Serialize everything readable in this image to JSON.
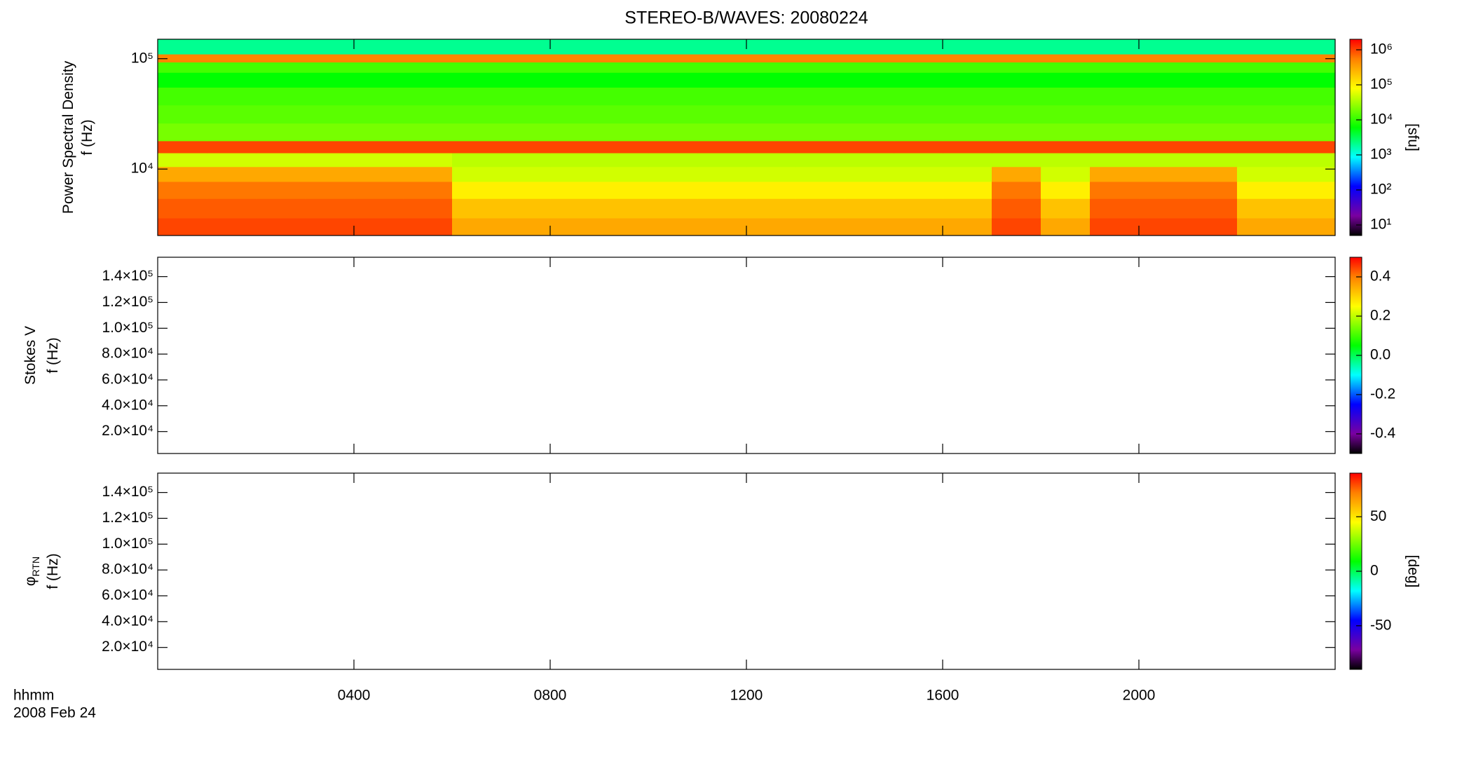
{
  "chart_data": [
    {
      "type": "heatmap",
      "title": "STEREO-B/WAVES: 20080224",
      "ylabel": [
        "Power Spectral Density",
        "f (Hz)"
      ],
      "xlim": [
        0,
        24
      ],
      "ylim": [
        2500,
        150000
      ],
      "yscale": "log",
      "yticks": [
        {
          "value": 10000,
          "label": "10⁴"
        },
        {
          "value": 100000,
          "label": "10⁵"
        }
      ],
      "xbins": [
        0,
        1,
        2,
        3,
        4,
        5,
        6,
        7,
        8,
        9,
        10,
        11,
        12,
        13,
        14,
        15,
        16,
        17,
        18,
        19,
        20,
        21,
        22,
        23,
        24
      ],
      "ybins": [
        2500,
        3600,
        5400,
        7700,
        10500,
        14000,
        18000,
        26000,
        38000,
        55000,
        75000,
        93000,
        110000,
        150000
      ],
      "z": [
        [
          1000000,
          1000000,
          1000000,
          1000000,
          1000000,
          1000000,
          300000,
          300000,
          300000,
          300000,
          300000,
          300000,
          300000,
          300000,
          300000,
          300000,
          300000,
          1000000,
          300000,
          1000000,
          1000000,
          1000000,
          300000,
          300000
        ],
        [
          800000,
          800000,
          800000,
          800000,
          800000,
          800000,
          200000,
          200000,
          200000,
          200000,
          200000,
          200000,
          200000,
          200000,
          200000,
          200000,
          200000,
          800000,
          200000,
          800000,
          800000,
          800000,
          200000,
          200000
        ],
        [
          600000,
          600000,
          600000,
          600000,
          600000,
          600000,
          100000,
          100000,
          100000,
          100000,
          100000,
          100000,
          100000,
          100000,
          100000,
          100000,
          100000,
          600000,
          100000,
          600000,
          600000,
          600000,
          100000,
          100000
        ],
        [
          300000,
          300000,
          300000,
          300000,
          300000,
          300000,
          50000,
          50000,
          50000,
          50000,
          50000,
          50000,
          50000,
          50000,
          50000,
          50000,
          50000,
          300000,
          50000,
          300000,
          300000,
          300000,
          50000,
          50000
        ],
        [
          50000,
          50000,
          50000,
          50000,
          50000,
          50000,
          40000,
          40000,
          40000,
          40000,
          40000,
          40000,
          40000,
          40000,
          40000,
          40000,
          40000,
          40000,
          40000,
          40000,
          40000,
          40000,
          40000,
          40000
        ],
        [
          1000000,
          1000000,
          1000000,
          1000000,
          1000000,
          1000000,
          1000000,
          1000000,
          1000000,
          1000000,
          1000000,
          1000000,
          1000000,
          1000000,
          1000000,
          1000000,
          1000000,
          1000000,
          1000000,
          1000000,
          1000000,
          1000000,
          1000000,
          1000000
        ],
        [
          20000,
          20000,
          20000,
          20000,
          20000,
          20000,
          20000,
          20000,
          20000,
          20000,
          20000,
          20000,
          20000,
          20000,
          20000,
          20000,
          20000,
          20000,
          20000,
          20000,
          20000,
          20000,
          20000,
          20000
        ],
        [
          15000,
          15000,
          15000,
          15000,
          15000,
          15000,
          15000,
          15000,
          15000,
          15000,
          15000,
          15000,
          15000,
          15000,
          15000,
          15000,
          15000,
          15000,
          15000,
          15000,
          15000,
          15000,
          15000,
          15000
        ],
        [
          12000,
          12000,
          12000,
          12000,
          12000,
          12000,
          12000,
          12000,
          12000,
          12000,
          12000,
          12000,
          12000,
          12000,
          12000,
          12000,
          12000,
          12000,
          12000,
          12000,
          12000,
          12000,
          12000,
          12000
        ],
        [
          6000,
          6000,
          6000,
          6000,
          6000,
          6000,
          6000,
          6000,
          6000,
          6000,
          6000,
          6000,
          6000,
          6000,
          6000,
          6000,
          6000,
          6000,
          6000,
          6000,
          6000,
          6000,
          6000,
          6000
        ],
        [
          12000,
          12000,
          12000,
          12000,
          12000,
          12000,
          12000,
          12000,
          12000,
          12000,
          12000,
          12000,
          12000,
          12000,
          12000,
          12000,
          12000,
          12000,
          12000,
          12000,
          12000,
          12000,
          12000,
          12000
        ],
        [
          500000,
          500000,
          500000,
          500000,
          500000,
          500000,
          500000,
          500000,
          500000,
          500000,
          500000,
          500000,
          500000,
          500000,
          500000,
          500000,
          500000,
          500000,
          500000,
          500000,
          500000,
          500000,
          500000,
          500000
        ],
        [
          2000,
          2000,
          2000,
          2000,
          2000,
          2000,
          2000,
          2000,
          2000,
          2000,
          2000,
          2000,
          2000,
          2000,
          2000,
          2000,
          2000,
          2000,
          2000,
          2000,
          2000,
          2000,
          2000,
          2000
        ]
      ],
      "zlim": [
        5,
        2000000
      ],
      "zscale": "log",
      "zticks": [
        {
          "value": 10,
          "label": "10¹"
        },
        {
          "value": 100,
          "label": "10²"
        },
        {
          "value": 1000,
          "label": "10³"
        },
        {
          "value": 10000,
          "label": "10⁴"
        },
        {
          "value": 100000,
          "label": "10⁵"
        },
        {
          "value": 1000000,
          "label": "10⁶"
        }
      ],
      "zlabel": "[sfu]"
    },
    {
      "type": "heatmap",
      "ylabel": [
        "Stokes V",
        "f (Hz)"
      ],
      "xlim": [
        0,
        24
      ],
      "ylim": [
        3000,
        155000
      ],
      "yticks": [
        {
          "value": 20000,
          "label": "2.0×10⁴"
        },
        {
          "value": 40000,
          "label": "4.0×10⁴"
        },
        {
          "value": 60000,
          "label": "6.0×10⁴"
        },
        {
          "value": 80000,
          "label": "8.0×10⁴"
        },
        {
          "value": 100000,
          "label": "1.0×10⁵"
        },
        {
          "value": 120000,
          "label": "1.2×10⁵"
        },
        {
          "value": 140000,
          "label": "1.4×10⁵"
        }
      ],
      "zlim": [
        -0.5,
        0.5
      ],
      "zticks": [
        -0.4,
        -0.2,
        {
          "value": 0,
          "label": "0.0"
        },
        0.2,
        0.4
      ]
    },
    {
      "type": "heatmap",
      "ylabel": [
        "φ",
        "f (Hz)"
      ],
      "ylabel_sub": "RTN",
      "xlim": [
        0,
        24
      ],
      "ylim": [
        3000,
        155000
      ],
      "yticks": [
        {
          "value": 20000,
          "label": "2.0×10⁴"
        },
        {
          "value": 40000,
          "label": "4.0×10⁴"
        },
        {
          "value": 60000,
          "label": "6.0×10⁴"
        },
        {
          "value": 80000,
          "label": "8.0×10⁴"
        },
        {
          "value": 100000,
          "label": "1.0×10⁵"
        },
        {
          "value": 120000,
          "label": "1.2×10⁵"
        },
        {
          "value": 140000,
          "label": "1.4×10⁵"
        }
      ],
      "zlim": [
        -90,
        90
      ],
      "zticks": [
        -50,
        0,
        50
      ],
      "zlabel": "[deg]",
      "xticks": [
        {
          "value": 4,
          "label": "0400"
        },
        {
          "value": 8,
          "label": "0800"
        },
        {
          "value": 12,
          "label": "1200"
        },
        {
          "value": 16,
          "label": "1600"
        },
        {
          "value": 20,
          "label": "2000"
        }
      ],
      "xlabel": [
        "hhmm",
        "2008 Feb 24"
      ]
    }
  ]
}
